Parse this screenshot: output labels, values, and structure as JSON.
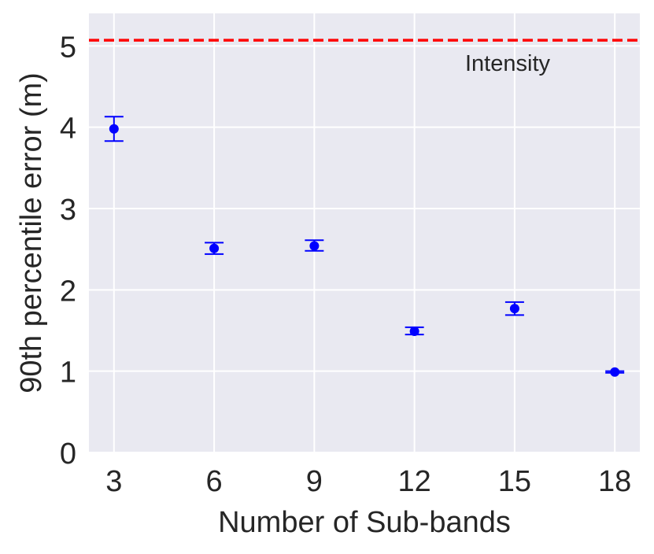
{
  "chart_data": {
    "type": "scatter",
    "title": "",
    "xlabel": "Number of Sub-bands",
    "ylabel": "90th percentile error (m)",
    "x_ticks": [
      3,
      6,
      9,
      12,
      15,
      18
    ],
    "y_ticks": [
      0,
      1,
      2,
      3,
      4,
      5
    ],
    "xlim": [
      2.25,
      18.75
    ],
    "ylim": [
      0,
      5.4
    ],
    "grid": true,
    "points": [
      {
        "x": 3,
        "y": 3.98,
        "err_low": 3.83,
        "err_high": 4.13
      },
      {
        "x": 6,
        "y": 2.51,
        "err_low": 2.44,
        "err_high": 2.58
      },
      {
        "x": 9,
        "y": 2.54,
        "err_low": 2.48,
        "err_high": 2.61
      },
      {
        "x": 12,
        "y": 1.49,
        "err_low": 1.45,
        "err_high": 1.54
      },
      {
        "x": 15,
        "y": 1.77,
        "err_low": 1.69,
        "err_high": 1.85
      },
      {
        "x": 18,
        "y": 0.99,
        "err_low": 0.98,
        "err_high": 1.0
      }
    ],
    "reference_line": {
      "label": "Intensity",
      "y": 5.07,
      "color": "#ff0000",
      "style": "dashed"
    },
    "colors": {
      "points": "#0000ff",
      "background": "#e9e9f1",
      "grid": "#ffffff"
    }
  }
}
